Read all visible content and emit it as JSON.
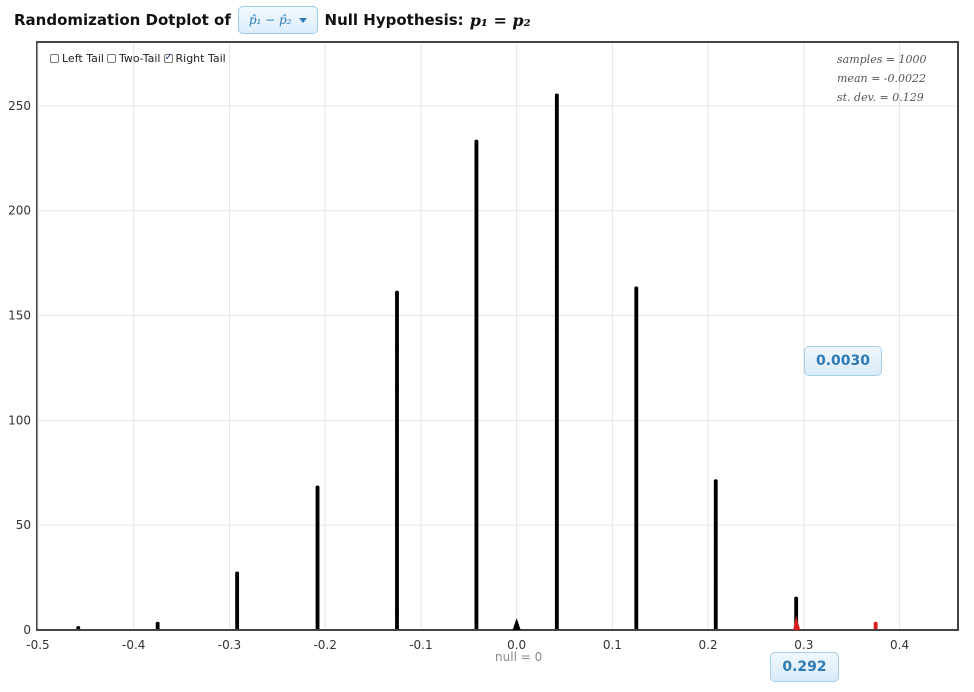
{
  "header": {
    "title_prefix": "Randomization Dotplot of",
    "statistic_label": "p̂₁ − p̂₂",
    "null_label": "Null Hypothesis:",
    "null_formula": "p₁ = p₂"
  },
  "tail_controls": {
    "left": {
      "label": "Left Tail",
      "checked": false
    },
    "two": {
      "label": "Two-Tail",
      "checked": false
    },
    "right": {
      "label": "Right Tail",
      "checked": true
    }
  },
  "summary": {
    "samples": "samples = 1000",
    "mean": "mean = -0.0022",
    "sd": "st. dev. = 0.129"
  },
  "p_value": "0.0030",
  "cutoff_value": "0.292",
  "null_marker_label": "null = 0",
  "colors": {
    "dot": "#000000",
    "tail_dot": "#d91b1b",
    "grid": "#e6e6e6",
    "accent": "#2e7ab5"
  },
  "chart_data": {
    "type": "scatter",
    "subtype": "dotplot",
    "xlim": [
      -0.5,
      0.46
    ],
    "ylim": [
      0,
      280
    ],
    "xticks": [
      -0.5,
      -0.4,
      -0.3,
      -0.2,
      -0.1,
      0.0,
      0.1,
      0.2,
      0.3,
      0.4
    ],
    "xtick_labels": [
      "-0.5",
      "-0.4",
      "-0.3",
      "-0.2",
      "-0.1",
      "0.0",
      "0.1",
      "0.2",
      "0.3",
      "0.4"
    ],
    "yticks": [
      0,
      50,
      100,
      150,
      200,
      250
    ],
    "ytick_labels": [
      "0",
      "50",
      "100",
      "150",
      "200",
      "250"
    ],
    "cutoff": 0.292,
    "null_value": 0,
    "grid": true,
    "columns": [
      {
        "x": -0.458,
        "count": 1,
        "in_tail": false
      },
      {
        "x": -0.375,
        "count": 3,
        "in_tail": false
      },
      {
        "x": -0.292,
        "count": 27,
        "in_tail": false
      },
      {
        "x": -0.208,
        "count": 68,
        "in_tail": false
      },
      {
        "x": -0.125,
        "count": 161,
        "in_tail": false
      },
      {
        "x": -0.042,
        "count": 233,
        "in_tail": false
      },
      {
        "x": 0.042,
        "count": 255,
        "in_tail": false
      },
      {
        "x": 0.125,
        "count": 163,
        "in_tail": false
      },
      {
        "x": 0.208,
        "count": 71,
        "in_tail": false
      },
      {
        "x": 0.292,
        "count": 15,
        "in_tail": false
      },
      {
        "x": 0.375,
        "count": 3,
        "in_tail": true
      }
    ]
  }
}
